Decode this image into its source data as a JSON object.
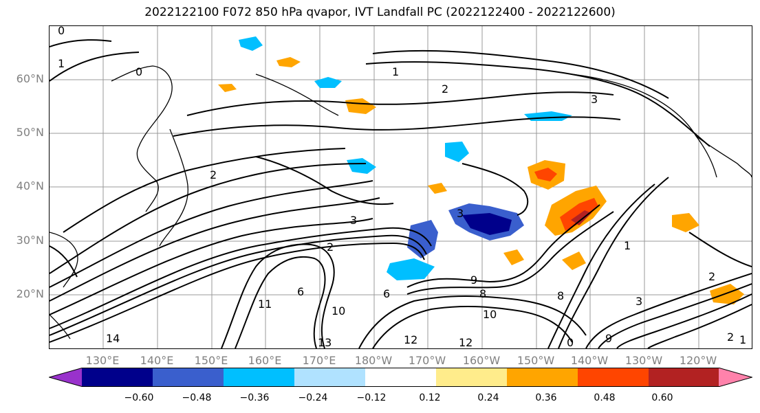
{
  "title": "2022122100 F072 850 hPa qvapor, IVT Landfall PC (2022122400 - 2022122600)",
  "lat_labels": [
    "60°N",
    "50°N",
    "40°N",
    "30°N",
    "20°N"
  ],
  "lon_labels": [
    "130°E",
    "140°E",
    "150°E",
    "160°E",
    "170°E",
    "180°W",
    "170°W",
    "160°W",
    "150°W",
    "140°W",
    "130°W",
    "120°W"
  ],
  "contour_labels": [
    "0",
    "0",
    "1",
    "2",
    "3",
    "2",
    "3",
    "2",
    "3",
    "1",
    "6",
    "11",
    "10",
    "12",
    "13",
    "14",
    "12",
    "6",
    "8",
    "9",
    "10",
    "0",
    "9",
    "8",
    "3",
    "2",
    "1",
    "2",
    "1"
  ],
  "colorbar": {
    "ticks": [
      "−0.60",
      "−0.48",
      "−0.36",
      "−0.24",
      "−0.12",
      "0.12",
      "0.24",
      "0.36",
      "0.48",
      "0.60"
    ],
    "colors": [
      "#9932cc",
      "#00008b",
      "#3a5fcd",
      "#00bfff",
      "#b0e2ff",
      "#ffffff",
      "#ffec8b",
      "#ffa500",
      "#ff4500",
      "#b22222",
      "#ff82ab"
    ]
  },
  "colors": {
    "map_line": "#000000",
    "axis_label": "#808080"
  }
}
